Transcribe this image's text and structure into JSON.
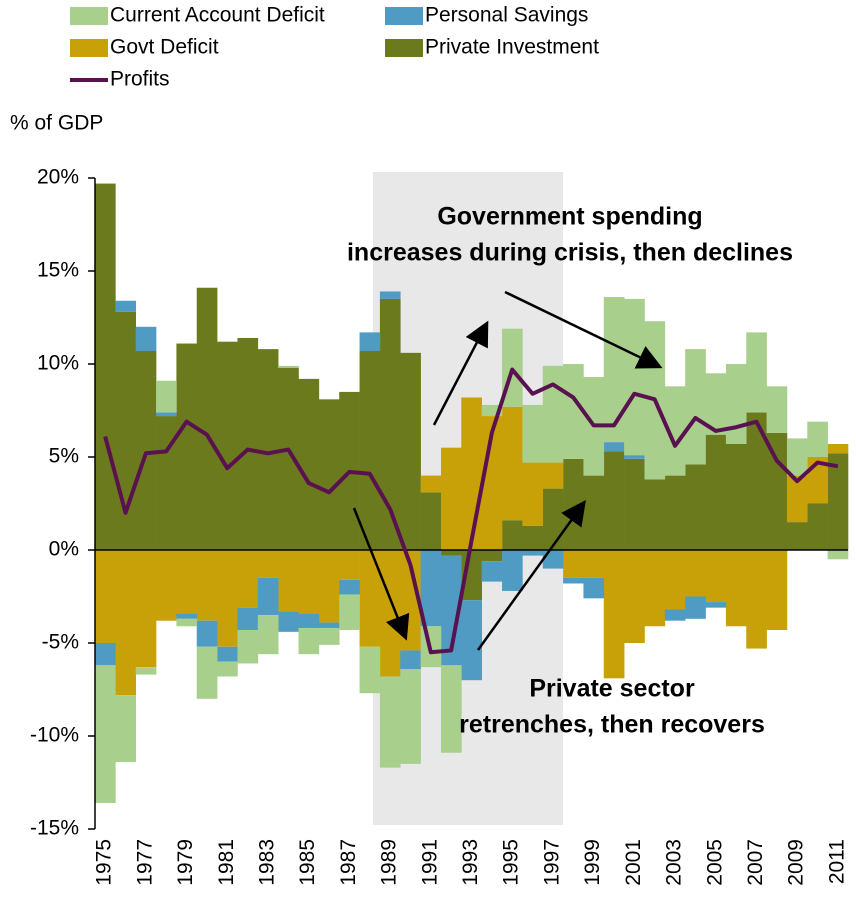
{
  "chart_data": {
    "type": "stacked-bar-line",
    "y_axis_label": "% of GDP",
    "annotations": [
      "Government spending",
      "increases during crisis, then declines",
      "Private sector",
      "retrenches, then recovers"
    ],
    "categories": [
      "1975",
      null,
      "1977",
      null,
      "1979",
      null,
      "1981",
      null,
      "1983",
      null,
      "1985",
      null,
      "1987",
      null,
      "1989",
      null,
      "1991",
      null,
      "1993",
      null,
      "1995",
      null,
      "1997",
      null,
      "1999",
      null,
      "2001",
      null,
      "2003",
      null,
      "2005",
      null,
      "2007",
      null,
      "2009",
      null,
      "2011"
    ],
    "ylim": [
      -15,
      20
    ],
    "yticks": [
      {
        "value": -15,
        "label": "-15%"
      },
      {
        "value": -10,
        "label": "-10%"
      },
      {
        "value": -5,
        "label": "-5%"
      },
      {
        "value": 0,
        "label": "0%"
      },
      {
        "value": 5,
        "label": "5%"
      },
      {
        "value": 10,
        "label": "10%"
      },
      {
        "value": 15,
        "label": "15%"
      },
      {
        "value": 20,
        "label": "20%"
      }
    ],
    "series": [
      {
        "name": "Private Investment",
        "color": "#6a7a1c",
        "kind": "bar",
        "values": [
          19.7,
          12.8,
          10.7,
          7.2,
          11.1,
          14.1,
          11.2,
          11.4,
          10.8,
          9.8,
          9.2,
          8.1,
          8.5,
          10.7,
          13.5,
          10.6,
          3.1,
          -0.3,
          -2.7,
          -0.6,
          1.6,
          1.3,
          3.3,
          4.9,
          4.0,
          5.3,
          4.9,
          3.8,
          4.0,
          4.6,
          6.2,
          5.7,
          7.4,
          6.3,
          1.5,
          2.5,
          5.2
        ]
      },
      {
        "name": "Govt Deficit",
        "color": "#c8a008",
        "kind": "bar",
        "values": [
          -5.0,
          -7.8,
          -6.3,
          -3.8,
          -3.4,
          -3.8,
          -5.2,
          -3.1,
          -1.5,
          -3.3,
          -3.4,
          -3.9,
          -1.6,
          -5.2,
          -6.8,
          -5.4,
          0.9,
          5.5,
          8.2,
          7.2,
          6.1,
          3.4,
          1.4,
          -1.5,
          -1.5,
          -6.9,
          -5.0,
          -4.1,
          -3.2,
          -2.5,
          -2.8,
          -4.1,
          -5.3,
          -4.3,
          2.5,
          2.5,
          0.5
        ]
      },
      {
        "name": "Personal Savings",
        "color": "#4f9bc3",
        "kind": "bar",
        "values": [
          -1.2,
          0.6,
          1.3,
          0.2,
          -0.3,
          -1.4,
          -0.8,
          -1.2,
          -2.0,
          -1.1,
          -0.8,
          -0.3,
          -0.8,
          1.0,
          0.4,
          -1.0,
          -4.1,
          -5.9,
          -4.3,
          -1.1,
          -2.2,
          -0.3,
          -1.0,
          -0.3,
          -1.1,
          0.5,
          0.2,
          0.0,
          -0.6,
          -1.2,
          -0.3,
          0.0,
          0.0,
          0.0,
          0.0,
          0.0,
          0.0
        ]
      },
      {
        "name": "Current Account Deficit",
        "color": "#a8cf8c",
        "kind": "bar",
        "values": [
          -7.4,
          -3.6,
          -0.4,
          1.7,
          -0.4,
          -2.8,
          -0.8,
          -1.8,
          -2.1,
          0.1,
          -1.4,
          -0.9,
          -1.9,
          -2.5,
          -4.9,
          -5.1,
          -2.2,
          -4.7,
          0.0,
          0.6,
          4.2,
          3.1,
          5.2,
          5.1,
          5.3,
          7.8,
          8.4,
          8.5,
          4.8,
          6.2,
          3.3,
          4.3,
          4.3,
          2.5,
          2.0,
          1.9,
          -0.5
        ]
      },
      {
        "name": "Profits",
        "color": "#5a1150",
        "kind": "line",
        "values": [
          6.1,
          2.0,
          5.2,
          5.3,
          6.9,
          6.2,
          4.4,
          5.4,
          5.2,
          5.4,
          3.6,
          3.1,
          4.2,
          4.1,
          2.2,
          -0.8,
          -5.5,
          -5.4,
          0.5,
          6.3,
          9.7,
          8.4,
          8.9,
          8.2,
          6.7,
          6.7,
          8.4,
          8.1,
          5.6,
          7.1,
          6.4,
          6.6,
          6.9,
          4.8,
          3.7,
          4.7,
          4.5
        ]
      }
    ]
  }
}
